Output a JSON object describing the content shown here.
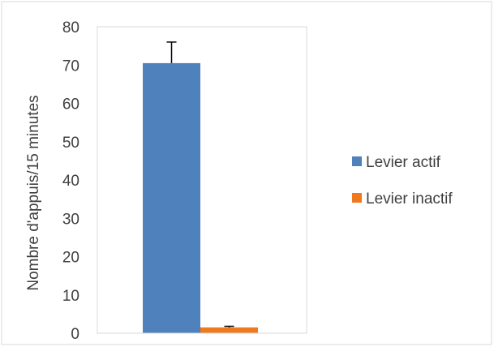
{
  "chart_data": {
    "type": "bar",
    "title": "",
    "xlabel": "",
    "ylabel": "Nombre d'appuis/15 minutes",
    "ylim": [
      0,
      80
    ],
    "yticks": [
      0,
      10,
      20,
      30,
      40,
      50,
      60,
      70,
      80
    ],
    "grid": false,
    "legend_position": "right",
    "categories": [
      ""
    ],
    "series": [
      {
        "name": "Levier actif",
        "values": [
          70.5
        ],
        "error": [
          5.5
        ],
        "color": "#4f81bd"
      },
      {
        "name": "Levier inactif",
        "values": [
          1.5
        ],
        "error": [
          0.3
        ],
        "color": "#f0781e"
      }
    ]
  }
}
